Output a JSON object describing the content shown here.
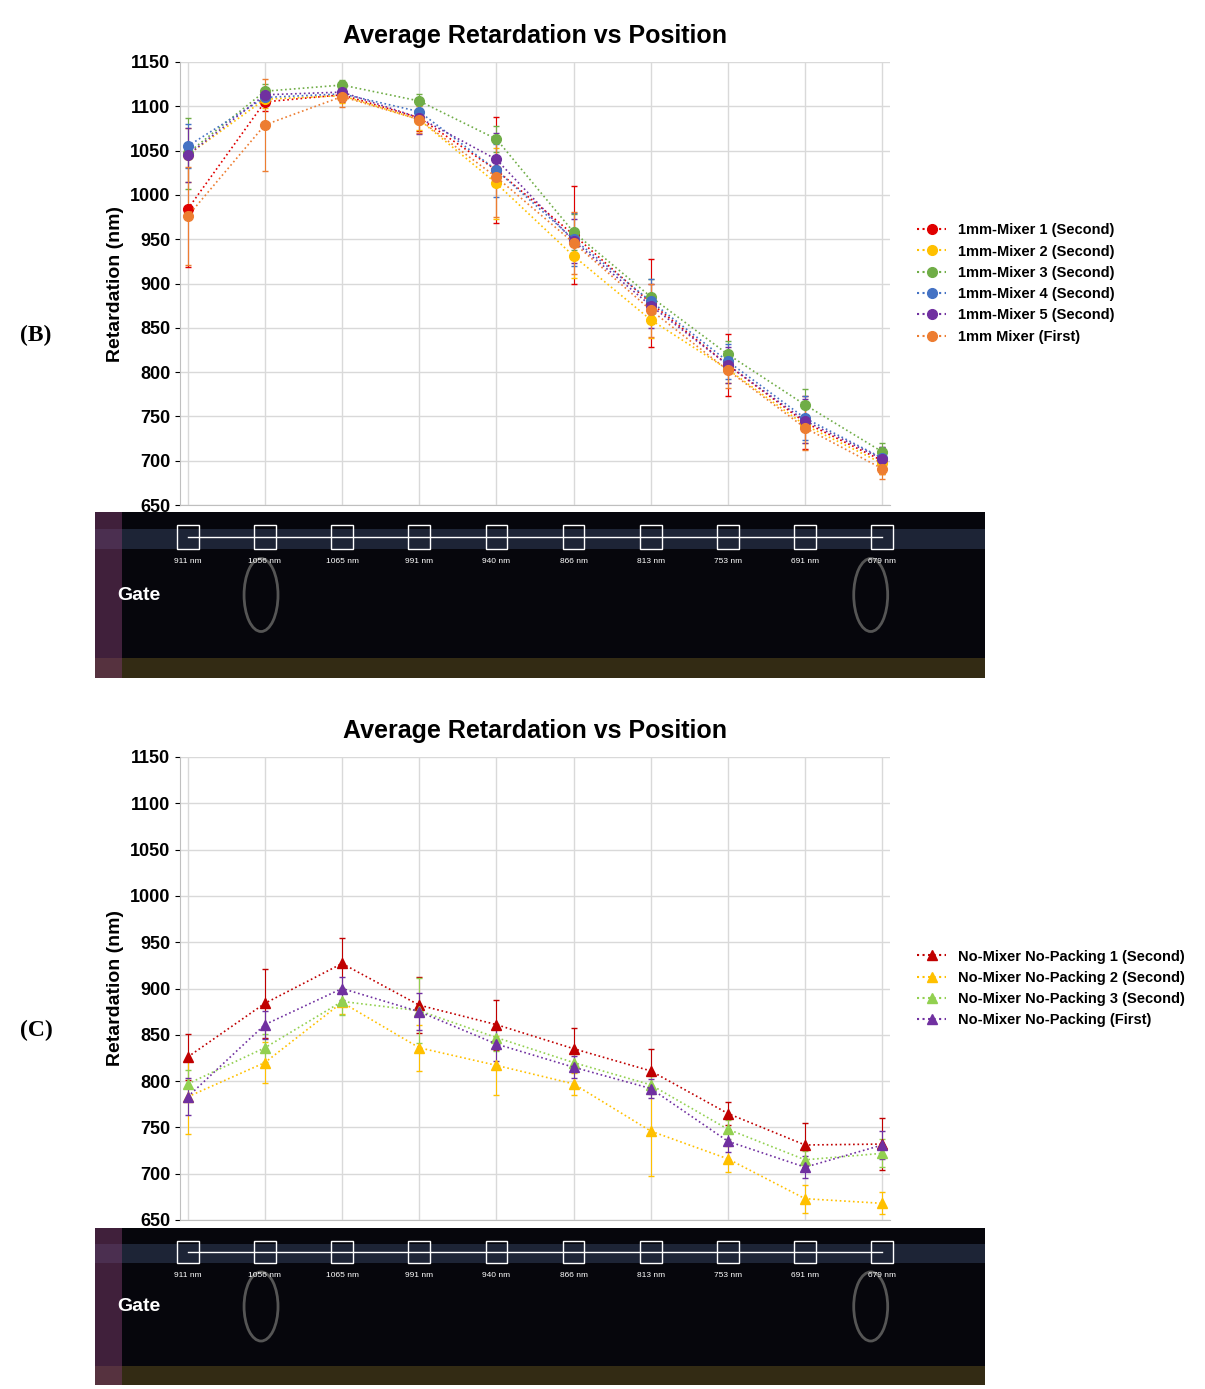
{
  "chart_data": [
    {
      "type": "line",
      "title": "Average Retardation vs Position",
      "y_label": "Retardation (nm)",
      "annotations": [
        "(B)",
        "Gate"
      ],
      "categories": [
        "911 nm",
        "1056 nm",
        "1065 nm",
        "991 nm",
        "940 nm",
        "866 nm",
        "813 nm",
        "753 nm",
        "691 nm",
        "679 nm"
      ],
      "ylim": [
        650,
        1150
      ],
      "yticks": [
        650,
        700,
        750,
        800,
        850,
        900,
        950,
        1000,
        1050,
        1100,
        1150
      ],
      "grid": true,
      "legend": "right",
      "tick_labels": "y",
      "series": [
        {
          "name": "1mm-Mixer 1 (Second)",
          "color": "#e00000",
          "marker": "circle",
          "line_style": "dotted",
          "values": [
            984,
            1105,
            1113,
            1087,
            1028,
            955,
            878,
            808,
            743,
            700
          ],
          "errors": [
            65,
            10,
            8,
            15,
            60,
            55,
            50,
            35,
            30,
            15
          ]
        },
        {
          "name": "1mm-Mixer 2 (Second)",
          "color": "#ffc000",
          "marker": "circle",
          "line_style": "dotted",
          "values": [
            1045,
            1108,
            1112,
            1085,
            1013,
            931,
            859,
            803,
            740,
            697
          ],
          "errors": [
            30,
            10,
            8,
            12,
            40,
            25,
            20,
            15,
            20,
            12
          ]
        },
        {
          "name": "1mm-Mixer 3 (Second)",
          "color": "#70ad47",
          "marker": "circle",
          "line_style": "dotted",
          "values": [
            1047,
            1117,
            1124,
            1106,
            1063,
            958,
            885,
            820,
            763,
            710
          ],
          "errors": [
            40,
            8,
            6,
            8,
            15,
            20,
            20,
            15,
            18,
            10
          ]
        },
        {
          "name": "1mm-Mixer 4 (Second)",
          "color": "#4472c4",
          "marker": "circle",
          "line_style": "dotted",
          "values": [
            1055,
            1110,
            1114,
            1094,
            1028,
            950,
            880,
            812,
            748,
            703
          ],
          "errors": [
            25,
            8,
            8,
            12,
            30,
            30,
            25,
            20,
            25,
            12
          ]
        },
        {
          "name": "1mm-Mixer 5 (Second)",
          "color": "#7030a0",
          "marker": "circle",
          "line_style": "dotted",
          "values": [
            1045,
            1113,
            1116,
            1087,
            1040,
            948,
            875,
            808,
            745,
            702
          ],
          "errors": [
            30,
            8,
            8,
            18,
            30,
            25,
            25,
            20,
            25,
            12
          ]
        },
        {
          "name": "1mm Mixer (First)",
          "color": "#ed7d31",
          "marker": "circle",
          "line_style": "dotted",
          "values": [
            976,
            1079,
            1111,
            1085,
            1020,
            946,
            870,
            802,
            737,
            691
          ],
          "errors": [
            55,
            52,
            12,
            15,
            45,
            35,
            30,
            20,
            25,
            12
          ]
        }
      ]
    },
    {
      "type": "line",
      "title": "Average Retardation vs Position",
      "y_label": "Retardation (nm)",
      "annotations": [
        "(C)",
        "Gate"
      ],
      "categories": [
        "911 nm",
        "1056 nm",
        "1065 nm",
        "991 nm",
        "940 nm",
        "866 nm",
        "813 nm",
        "753 nm",
        "691 nm",
        "679 nm"
      ],
      "ylim": [
        650,
        1150
      ],
      "yticks": [
        650,
        700,
        750,
        800,
        850,
        900,
        950,
        1000,
        1050,
        1100,
        1150
      ],
      "grid": true,
      "legend": "right",
      "tick_labels": "y",
      "series": [
        {
          "name": "No-Mixer No-Packing 1 (Second)",
          "color": "#c00000",
          "marker": "triangle",
          "line_style": "dotted",
          "values": [
            826,
            884,
            927,
            882,
            861,
            835,
            811,
            765,
            731,
            732
          ],
          "errors": [
            25,
            37,
            28,
            30,
            27,
            22,
            24,
            12,
            24,
            28
          ]
        },
        {
          "name": "No-Mixer No-Packing 2 (Second)",
          "color": "#ffc000",
          "marker": "triangle",
          "line_style": "dotted",
          "values": [
            783,
            820,
            885,
            836,
            817,
            797,
            746,
            716,
            673,
            668
          ],
          "errors": [
            40,
            22,
            12,
            25,
            32,
            12,
            48,
            14,
            15,
            12
          ]
        },
        {
          "name": "No-Mixer No-Packing 3 (Second)",
          "color": "#92d050",
          "marker": "triangle",
          "line_style": "dotted",
          "values": [
            797,
            836,
            886,
            876,
            847,
            820,
            796,
            748,
            715,
            722
          ],
          "errors": [
            15,
            15,
            15,
            35,
            15,
            10,
            10,
            10,
            10,
            15
          ]
        },
        {
          "name": "No-Mixer No-Packing (First)",
          "color": "#7030a0",
          "marker": "triangle",
          "line_style": "dotted",
          "values": [
            783,
            861,
            900,
            875,
            840,
            815,
            792,
            735,
            707,
            731
          ],
          "errors": [
            20,
            15,
            12,
            20,
            18,
            12,
            10,
            12,
            12,
            15
          ]
        }
      ]
    }
  ]
}
